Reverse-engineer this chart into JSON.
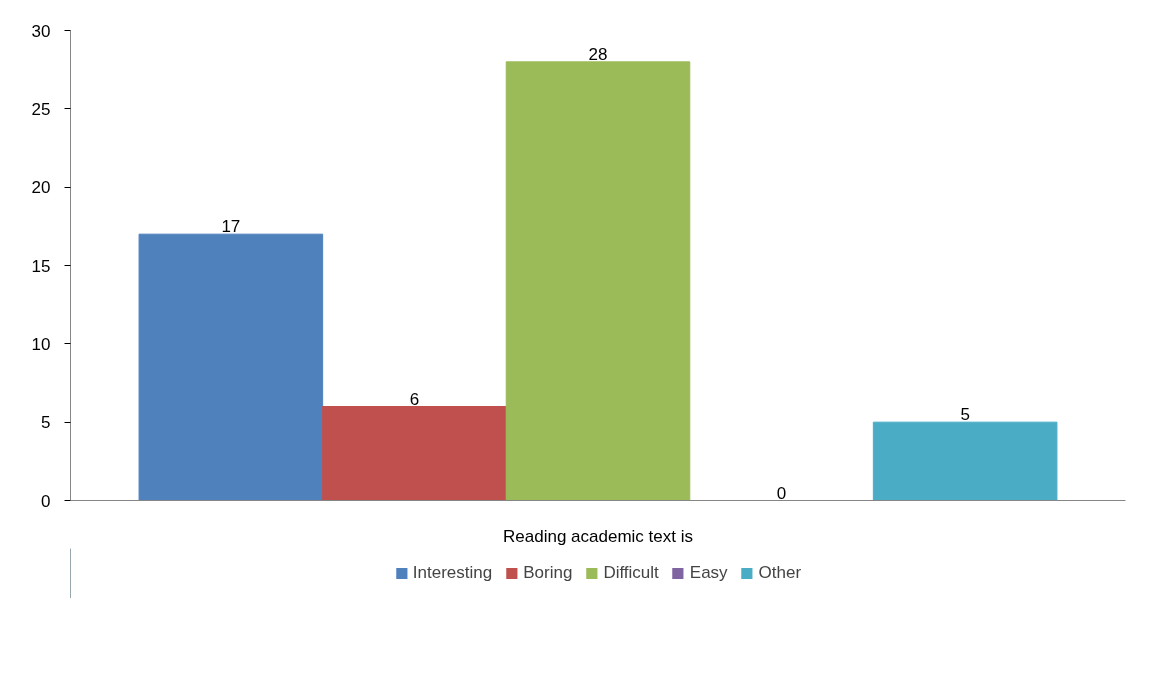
{
  "chart_data": {
    "type": "bar",
    "categories": [
      "Reading academic text is"
    ],
    "series": [
      {
        "name": "Interesting",
        "color": "#4f81bd",
        "values": [
          17
        ]
      },
      {
        "name": "Boring",
        "color": "#c0504d",
        "values": [
          6
        ]
      },
      {
        "name": "Difficult",
        "color": "#9bbb59",
        "values": [
          28
        ]
      },
      {
        "name": "Easy",
        "color": "#8064a2",
        "values": [
          0
        ]
      },
      {
        "name": "Other",
        "color": "#4bacc6",
        "values": [
          5
        ]
      }
    ],
    "ylim": [
      0,
      30
    ],
    "yticks": [
      0,
      5,
      10,
      15,
      20,
      25,
      30
    ],
    "grid": false,
    "legend": "bottom",
    "data_labels": true
  }
}
